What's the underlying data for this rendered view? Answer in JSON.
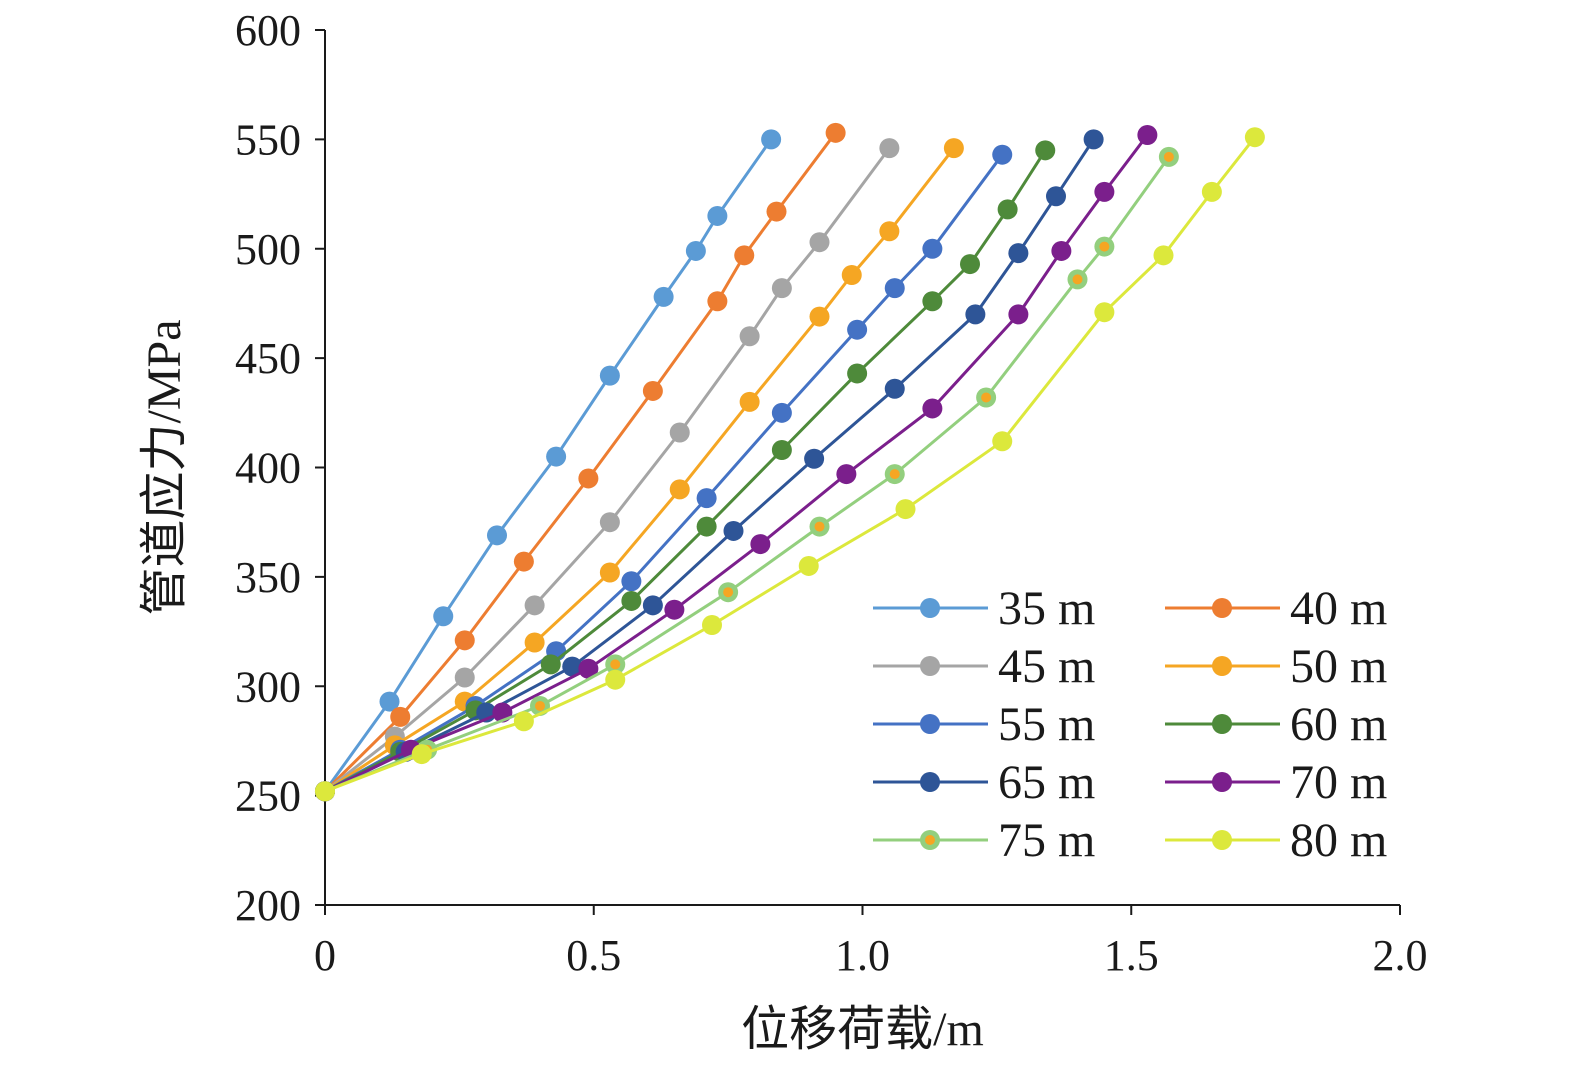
{
  "chart_data": {
    "type": "line",
    "xlabel": "位移荷载/m",
    "ylabel": "管道应力/MPa",
    "xlim": [
      0,
      2.0
    ],
    "ylim": [
      200,
      600
    ],
    "x_ticks": [
      "0",
      "0.5",
      "1.0",
      "1.5",
      "2.0"
    ],
    "y_ticks": [
      "200",
      "250",
      "300",
      "350",
      "400",
      "450",
      "500",
      "550",
      "600"
    ],
    "grid": false,
    "legend_position": "bottom-right",
    "series": [
      {
        "name": "35 m",
        "color": "#5b9bd5",
        "marker_center": "#5b9bd5",
        "points": [
          [
            0,
            252
          ],
          [
            0.12,
            293
          ],
          [
            0.22,
            332
          ],
          [
            0.32,
            369
          ],
          [
            0.43,
            405
          ],
          [
            0.53,
            442
          ],
          [
            0.63,
            478
          ],
          [
            0.69,
            499
          ],
          [
            0.73,
            515
          ],
          [
            0.83,
            550
          ]
        ]
      },
      {
        "name": "40 m",
        "color": "#ed7d31",
        "marker_center": "#ed7d31",
        "points": [
          [
            0,
            252
          ],
          [
            0.14,
            286
          ],
          [
            0.26,
            321
          ],
          [
            0.37,
            357
          ],
          [
            0.49,
            395
          ],
          [
            0.61,
            435
          ],
          [
            0.73,
            476
          ],
          [
            0.78,
            497
          ],
          [
            0.84,
            517
          ],
          [
            0.95,
            553
          ]
        ]
      },
      {
        "name": "45 m",
        "color": "#a5a5a5",
        "marker_center": "#a5a5a5",
        "points": [
          [
            0,
            252
          ],
          [
            0.13,
            277
          ],
          [
            0.26,
            304
          ],
          [
            0.39,
            337
          ],
          [
            0.53,
            375
          ],
          [
            0.66,
            416
          ],
          [
            0.79,
            460
          ],
          [
            0.85,
            482
          ],
          [
            0.92,
            503
          ],
          [
            1.05,
            546
          ]
        ]
      },
      {
        "name": "50 m",
        "color": "#f5a623",
        "marker_center": "#f5a623",
        "points": [
          [
            0,
            252
          ],
          [
            0.13,
            273
          ],
          [
            0.26,
            293
          ],
          [
            0.39,
            320
          ],
          [
            0.53,
            352
          ],
          [
            0.66,
            390
          ],
          [
            0.79,
            430
          ],
          [
            0.92,
            469
          ],
          [
            0.98,
            488
          ],
          [
            1.05,
            508
          ],
          [
            1.17,
            546
          ]
        ]
      },
      {
        "name": "55 m",
        "color": "#4472c4",
        "marker_center": "#4472c4",
        "points": [
          [
            0,
            252
          ],
          [
            0.14,
            271
          ],
          [
            0.28,
            291
          ],
          [
            0.43,
            316
          ],
          [
            0.57,
            348
          ],
          [
            0.71,
            386
          ],
          [
            0.85,
            425
          ],
          [
            0.99,
            463
          ],
          [
            1.06,
            482
          ],
          [
            1.13,
            500
          ],
          [
            1.26,
            543
          ]
        ]
      },
      {
        "name": "60 m",
        "color": "#4e8a3a",
        "marker_center": "#4e8a3a",
        "points": [
          [
            0,
            252
          ],
          [
            0.14,
            270
          ],
          [
            0.28,
            289
          ],
          [
            0.42,
            310
          ],
          [
            0.57,
            339
          ],
          [
            0.71,
            373
          ],
          [
            0.85,
            408
          ],
          [
            0.99,
            443
          ],
          [
            1.13,
            476
          ],
          [
            1.2,
            493
          ],
          [
            1.27,
            518
          ],
          [
            1.34,
            545
          ]
        ]
      },
      {
        "name": "65 m",
        "color": "#2e5597",
        "marker_center": "#2e5597",
        "points": [
          [
            0,
            252
          ],
          [
            0.15,
            270
          ],
          [
            0.3,
            288
          ],
          [
            0.46,
            309
          ],
          [
            0.61,
            337
          ],
          [
            0.76,
            371
          ],
          [
            0.91,
            404
          ],
          [
            1.06,
            436
          ],
          [
            1.21,
            470
          ],
          [
            1.29,
            498
          ],
          [
            1.36,
            524
          ],
          [
            1.43,
            550
          ]
        ]
      },
      {
        "name": "70 m",
        "color": "#7b1f8c",
        "marker_center": "#7b1f8c",
        "points": [
          [
            0,
            252
          ],
          [
            0.16,
            271
          ],
          [
            0.33,
            288
          ],
          [
            0.49,
            308
          ],
          [
            0.65,
            335
          ],
          [
            0.81,
            365
          ],
          [
            0.97,
            397
          ],
          [
            1.13,
            427
          ],
          [
            1.29,
            470
          ],
          [
            1.37,
            499
          ],
          [
            1.45,
            526
          ],
          [
            1.53,
            552
          ]
        ]
      },
      {
        "name": "75 m",
        "color": "#93cf7e",
        "marker_center": "#f5a623",
        "points": [
          [
            0,
            252
          ],
          [
            0.19,
            271
          ],
          [
            0.4,
            291
          ],
          [
            0.54,
            310
          ],
          [
            0.75,
            343
          ],
          [
            0.92,
            373
          ],
          [
            1.06,
            397
          ],
          [
            1.23,
            432
          ],
          [
            1.4,
            486
          ],
          [
            1.45,
            501
          ],
          [
            1.57,
            542
          ]
        ]
      },
      {
        "name": "80 m",
        "color": "#dce83c",
        "marker_center": "#dce83c",
        "points": [
          [
            0,
            252
          ],
          [
            0.18,
            269
          ],
          [
            0.37,
            284
          ],
          [
            0.54,
            303
          ],
          [
            0.72,
            328
          ],
          [
            0.9,
            355
          ],
          [
            1.08,
            381
          ],
          [
            1.26,
            412
          ],
          [
            1.45,
            471
          ],
          [
            1.56,
            497
          ],
          [
            1.65,
            526
          ],
          [
            1.73,
            551
          ]
        ]
      }
    ]
  }
}
